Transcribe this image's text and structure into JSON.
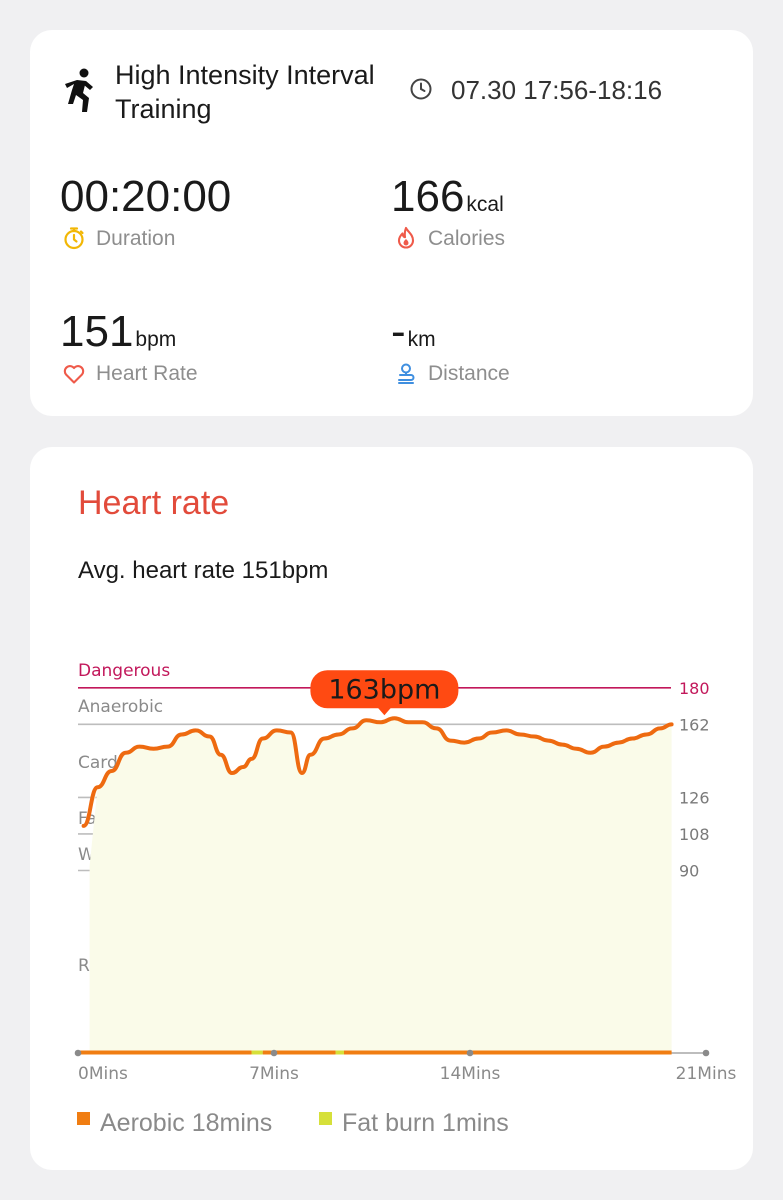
{
  "workout": {
    "title": "High Intensity Interval Training",
    "time_range": "07.30 17:56-18:16",
    "icon": "running-person-icon"
  },
  "metrics": {
    "duration": {
      "value": "00:20:00",
      "unit": "",
      "label": "Duration",
      "icon": "stopwatch-icon",
      "icon_color": "#f2b705"
    },
    "calories": {
      "value": "166",
      "unit": "kcal",
      "label": "Calories",
      "icon": "flame-icon",
      "icon_color": "#ef5a4a"
    },
    "heart_rate": {
      "value": "151",
      "unit": "bpm",
      "label": "Heart Rate",
      "icon": "heart-icon",
      "icon_color": "#ef5a4a"
    },
    "distance": {
      "value": "-",
      "unit": "km",
      "label": "Distance",
      "icon": "route-icon",
      "icon_color": "#3f8fe0"
    }
  },
  "heart_rate_section": {
    "title": "Heart rate",
    "average": "Avg. heart rate 151bpm",
    "max_badge": "163bpm"
  },
  "legend": [
    {
      "label": "Aerobic 18mins",
      "color": "#f07d12"
    },
    {
      "label": "Fat burn 1mins",
      "color": "#d6e03a"
    }
  ],
  "chart_data": {
    "type": "area",
    "title": "",
    "xlabel": "",
    "ylabel": "",
    "x_unit": "mins",
    "x_ticks": [
      "0Mins",
      "7Mins",
      "14Mins",
      "21Mins"
    ],
    "xlim": [
      0,
      21
    ],
    "zones": [
      {
        "name": "Dangerous",
        "threshold": 180,
        "color": "#c2185b"
      },
      {
        "name": "Anaerobic",
        "threshold": 162,
        "color": "#bdbdbd"
      },
      {
        "name": "Cardio training",
        "threshold": 126,
        "color": "#bdbdbd"
      },
      {
        "name": "Fat burning",
        "threshold": 108,
        "color": "#bdbdbd"
      },
      {
        "name": "Warm up",
        "threshold": 90,
        "color": "#bdbdbd"
      },
      {
        "name": "Resting",
        "threshold": null,
        "color": "#bdbdbd"
      }
    ],
    "line_color": "#ee6a10",
    "fill_color": "#fafbe9",
    "max_value": 163,
    "series": [
      {
        "x": [
          0.2,
          0.7,
          1.2,
          1.7,
          2.2,
          2.7,
          3.2,
          3.7,
          4.2,
          4.7,
          5.1,
          5.5,
          5.9,
          6.2,
          6.6,
          7.1,
          7.6,
          8.0,
          8.3,
          8.8,
          9.3,
          9.8,
          10.3,
          10.8,
          11.3,
          11.8,
          12.3,
          12.8,
          13.3,
          13.8,
          14.3,
          14.8,
          15.3,
          15.8,
          16.3,
          16.8,
          17.3,
          17.8,
          18.3,
          18.8,
          19.3,
          19.8,
          20.3,
          20.8,
          21.2
        ],
        "y": [
          112,
          131,
          139,
          148,
          151,
          150,
          151,
          157,
          159,
          156,
          147,
          138,
          141,
          145,
          155,
          159,
          158,
          138,
          147,
          155,
          157,
          160,
          164,
          163,
          165,
          163,
          163,
          160,
          154,
          153,
          155,
          158,
          159,
          157,
          156,
          154,
          152,
          150,
          148,
          151,
          153,
          155,
          157,
          160,
          162
        ]
      }
    ],
    "zone_bar": [
      {
        "from": 0,
        "to": 6.2,
        "zone": "Aerobic"
      },
      {
        "from": 6.2,
        "to": 6.6,
        "zone": "Fat burn"
      },
      {
        "from": 6.6,
        "to": 9.2,
        "zone": "Aerobic"
      },
      {
        "from": 9.2,
        "to": 9.5,
        "zone": "Fat burn"
      },
      {
        "from": 9.5,
        "to": 21.2,
        "zone": "Aerobic"
      }
    ]
  }
}
